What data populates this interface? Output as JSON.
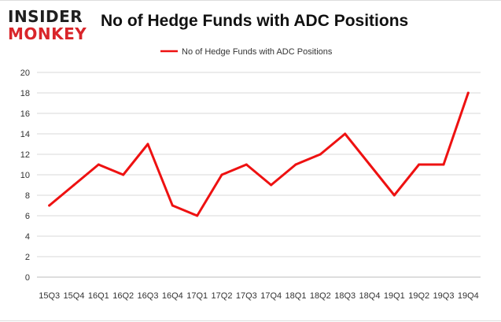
{
  "logo": {
    "line1": "INSIDER",
    "line2": "MONKEY"
  },
  "chart_data": {
    "type": "line",
    "title": "No of Hedge Funds with ADC Positions",
    "xlabel": "",
    "ylabel": "",
    "categories": [
      "15Q3",
      "15Q4",
      "16Q1",
      "16Q2",
      "16Q3",
      "16Q4",
      "17Q1",
      "17Q2",
      "17Q3",
      "17Q4",
      "18Q1",
      "18Q2",
      "18Q3",
      "18Q4",
      "19Q1",
      "19Q2",
      "19Q3",
      "19Q4"
    ],
    "series": [
      {
        "name": "No of Hedge Funds with ADC Positions",
        "color": "#ee1111",
        "values": [
          7,
          9,
          11,
          10,
          13,
          7,
          6,
          10,
          11,
          9,
          11,
          12,
          14,
          11,
          8,
          11,
          11,
          18
        ]
      }
    ],
    "ylim": [
      0,
      20
    ],
    "yticks": [
      0,
      2,
      4,
      6,
      8,
      10,
      12,
      14,
      16,
      18,
      20
    ],
    "grid": true,
    "legend": "top-center"
  }
}
